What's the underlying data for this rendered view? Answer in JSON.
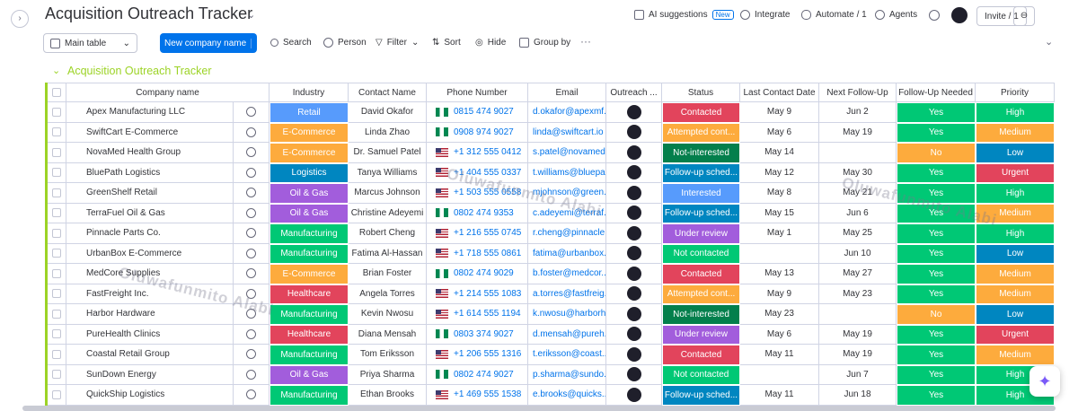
{
  "topbar": {
    "title": "Acquisition Outreach Tracker",
    "ai_suggestions": "AI suggestions",
    "new_badge": "New",
    "integrate": "Integrate",
    "automate": "Automate / 1",
    "agents": "Agents",
    "invite": "Invite / 1"
  },
  "toolbar": {
    "main_table": "Main table",
    "new_item": "New company name",
    "search": "Search",
    "person": "Person",
    "filter": "Filter",
    "sort": "Sort",
    "hide": "Hide",
    "group_by": "Group by"
  },
  "group": {
    "title": "Acquisition Outreach Tracker",
    "color": "#9cd326"
  },
  "watermark": "Oluwafunmito Alabi",
  "columns": [
    "Company name",
    "Industry",
    "Contact Name",
    "Phone Number",
    "Email",
    "Outreach ...",
    "Status",
    "Last Contact Date",
    "Next Follow-Up",
    "Follow-Up Needed",
    "Priority"
  ],
  "palette": {
    "industry": {
      "Retail": "#579bfc",
      "E-Commerce": "#fdab3d",
      "Logistics": "#0086c0",
      "Oil & Gas": "#a25ddc",
      "Manufacturing": "#00c875",
      "Healthcare": "#e2445c"
    },
    "status": {
      "Contacted": "#e2445c",
      "Attempted cont...": "#fdab3d",
      "Not-interested": "#037f4c",
      "Follow-up sched...": "#0086c0",
      "Interested": "#579bfc",
      "Under review": "#a25ddc",
      "Not contacted": "#00c875"
    },
    "follow_up_needed": {
      "Yes": "#00c875",
      "No": "#fdab3d"
    },
    "priority": {
      "High": "#00c875",
      "Medium": "#fdab3d",
      "Low": "#0086c0",
      "Urgent": "#e2445c"
    }
  },
  "rows": [
    {
      "company": "Apex Manufacturing LLC",
      "industry": "Retail",
      "contact": "David Okafor",
      "phone": "0815 474 9027",
      "email": "d.okafor@apexmf...",
      "status": "Contacted",
      "last_contact": "May 9",
      "next_follow_up": "Jun 2",
      "follow_up_needed": "Yes",
      "priority": "High"
    },
    {
      "company": "SwiftCart E-Commerce",
      "industry": "E-Commerce",
      "contact": "Linda Zhao",
      "phone": "0908 974 9027",
      "email": "linda@swiftcart.io",
      "status": "Attempted cont...",
      "last_contact": "May 6",
      "next_follow_up": "May 19",
      "follow_up_needed": "Yes",
      "priority": "Medium"
    },
    {
      "company": "NovaMed Health Group",
      "industry": "E-Commerce",
      "contact": "Dr. Samuel Patel",
      "phone": "+1 312 555 0412",
      "email": "s.patel@novamed...",
      "status": "Not-interested",
      "last_contact": "May 14",
      "next_follow_up": null,
      "follow_up_needed": "No",
      "priority": "Low"
    },
    {
      "company": "BluePath Logistics",
      "industry": "Logistics",
      "contact": "Tanya Williams",
      "phone": "+1 404 555 0337",
      "email": "t.williams@bluepa...",
      "status": "Follow-up sched...",
      "last_contact": "May 12",
      "next_follow_up": "May 30",
      "follow_up_needed": "Yes",
      "priority": "Urgent"
    },
    {
      "company": "GreenShelf Retail",
      "industry": "Oil & Gas",
      "contact": "Marcus Johnson",
      "phone": "+1 503 555 0558",
      "email": "mjohnson@green...",
      "status": "Interested",
      "last_contact": "May 8",
      "next_follow_up": "May 21",
      "follow_up_needed": "Yes",
      "priority": "High"
    },
    {
      "company": "TerraFuel Oil & Gas",
      "industry": "Oil & Gas",
      "contact": "Christine Adeyemi",
      "phone": "0802 474 9353",
      "email": "c.adeyemi@terraf...",
      "status": "Follow-up sched...",
      "last_contact": "May 15",
      "next_follow_up": "Jun 6",
      "follow_up_needed": "Yes",
      "priority": "Medium"
    },
    {
      "company": "Pinnacle Parts Co.",
      "industry": "Manufacturing",
      "contact": "Robert Cheng",
      "phone": "+1 216 555 0745",
      "email": "r.cheng@pinnacle...",
      "status": "Under review",
      "last_contact": "May 1",
      "next_follow_up": "May 25",
      "follow_up_needed": "Yes",
      "priority": "High"
    },
    {
      "company": "UrbanBox E-Commerce",
      "industry": "Manufacturing",
      "contact": "Fatima Al-Hassan",
      "phone": "+1 718 555 0861",
      "email": "fatima@urbanbox...",
      "status": "Not contacted",
      "last_contact": null,
      "next_follow_up": "Jun 10",
      "follow_up_needed": "Yes",
      "priority": "Low"
    },
    {
      "company": "MedCore Supplies",
      "industry": "E-Commerce",
      "contact": "Brian Foster",
      "phone": "0802 474 9029",
      "email": "b.foster@medcor...",
      "status": "Contacted",
      "last_contact": "May 13",
      "next_follow_up": "May 27",
      "follow_up_needed": "Yes",
      "priority": "Medium"
    },
    {
      "company": "FastFreight Inc.",
      "industry": "Healthcare",
      "contact": "Angela Torres",
      "phone": "+1 214 555 1083",
      "email": "a.torres@fastfreig...",
      "status": "Attempted cont...",
      "last_contact": "May 9",
      "next_follow_up": "May 23",
      "follow_up_needed": "Yes",
      "priority": "Medium"
    },
    {
      "company": "Harbor Hardware",
      "industry": "Manufacturing",
      "contact": "Kevin Nwosu",
      "phone": "+1 614 555 1194",
      "email": "k.nwosu@harborh...",
      "status": "Not-interested",
      "last_contact": "May 23",
      "next_follow_up": null,
      "follow_up_needed": "No",
      "priority": "Low"
    },
    {
      "company": "PureHealth Clinics",
      "industry": "Healthcare",
      "contact": "Diana Mensah",
      "phone": "0803 374 9027",
      "email": "d.mensah@pureh...",
      "status": "Under review",
      "last_contact": "May 6",
      "next_follow_up": "May 19",
      "follow_up_needed": "Yes",
      "priority": "Urgent"
    },
    {
      "company": "Coastal Retail Group",
      "industry": "Manufacturing",
      "contact": "Tom Eriksson",
      "phone": "+1 206 555 1316",
      "email": "t.eriksson@coast...",
      "status": "Contacted",
      "last_contact": "May 11",
      "next_follow_up": "May 19",
      "follow_up_needed": "Yes",
      "priority": "Medium"
    },
    {
      "company": "SunDown Energy",
      "industry": "Oil & Gas",
      "contact": "Priya Sharma",
      "phone": "0802 474 9027",
      "email": "p.sharma@sundo...",
      "status": "Not contacted",
      "last_contact": null,
      "next_follow_up": "Jun 7",
      "follow_up_needed": "Yes",
      "priority": "High"
    },
    {
      "company": "QuickShip Logistics",
      "industry": "Manufacturing",
      "contact": "Ethan Brooks",
      "phone": "+1 469 555 1538",
      "email": "e.brooks@quicks...",
      "status": "Follow-up sched...",
      "last_contact": "May 11",
      "next_follow_up": "Jun 18",
      "follow_up_needed": "Yes",
      "priority": "High"
    }
  ]
}
